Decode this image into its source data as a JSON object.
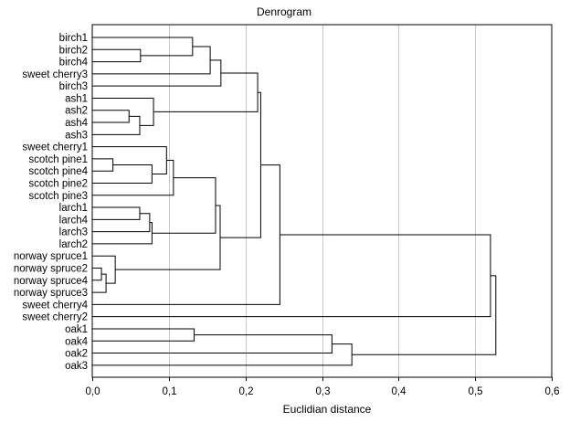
{
  "chart_data": {
    "type": "dendrogram",
    "title": "Denrogram",
    "xlabel": "Euclidian distance",
    "ylabel": "",
    "xlim": [
      0,
      0.6
    ],
    "x_ticks": [
      "0,0",
      "0,1",
      "0,2",
      "0,3",
      "0,4",
      "0,5",
      "0,6"
    ],
    "x_tick_values": [
      0,
      0.1,
      0.2,
      0.3,
      0.4,
      0.5,
      0.6
    ],
    "grid": "vertical",
    "leaves": [
      "birch1",
      "birch2",
      "birch4",
      "sweet cherry3",
      "birch3",
      "ash1",
      "ash2",
      "ash4",
      "ash3",
      "sweet cherry1",
      "scotch pine1",
      "scotch pine4",
      "scotch pine2",
      "scotch pine3",
      "larch1",
      "larch4",
      "larch3",
      "larch2",
      "norway spruce1",
      "norway spruce2",
      "norway spruce4",
      "norway spruce3",
      "sweet cherry4",
      "sweet cherry2",
      "oak1",
      "oak4",
      "oak2",
      "oak3"
    ],
    "merges": [
      {
        "a": "L1",
        "b": "L2",
        "height": 0.063
      },
      {
        "a": "L0",
        "b": "M0",
        "height": 0.131
      },
      {
        "a": "M1",
        "b": "L3",
        "height": 0.154
      },
      {
        "a": "M2",
        "b": "L4",
        "height": 0.168
      },
      {
        "a": "L6",
        "b": "L7",
        "height": 0.048
      },
      {
        "a": "M4",
        "b": "L8",
        "height": 0.062
      },
      {
        "a": "L5",
        "b": "M5",
        "height": 0.08
      },
      {
        "a": "M3",
        "b": "M6",
        "height": 0.216
      },
      {
        "a": "L10",
        "b": "L11",
        "height": 0.027
      },
      {
        "a": "L12",
        "b": "M8",
        "height": 0.078
      },
      {
        "a": "L9",
        "b": "M9",
        "height": 0.097
      },
      {
        "a": "M10",
        "b": "L13",
        "height": 0.106
      },
      {
        "a": "L14",
        "b": "L15",
        "height": 0.062
      },
      {
        "a": "M12",
        "b": "L16",
        "height": 0.075
      },
      {
        "a": "M13",
        "b": "L17",
        "height": 0.078
      },
      {
        "a": "M11",
        "b": "M14",
        "height": 0.161
      },
      {
        "a": "L19",
        "b": "L20",
        "height": 0.012
      },
      {
        "a": "M16",
        "b": "L21",
        "height": 0.018
      },
      {
        "a": "L18",
        "b": "M17",
        "height": 0.03
      },
      {
        "a": "M15",
        "b": "M18",
        "height": 0.167
      },
      {
        "a": "M7",
        "b": "M19",
        "height": 0.22
      },
      {
        "a": "M20",
        "b": "L22",
        "height": 0.245
      },
      {
        "a": "M21",
        "b": "L23",
        "height": 0.52
      },
      {
        "a": "L24",
        "b": "L25",
        "height": 0.133
      },
      {
        "a": "M23",
        "b": "L26",
        "height": 0.313
      },
      {
        "a": "M24",
        "b": "L27",
        "height": 0.339
      },
      {
        "a": "M22",
        "b": "M25",
        "height": 0.527
      }
    ]
  }
}
